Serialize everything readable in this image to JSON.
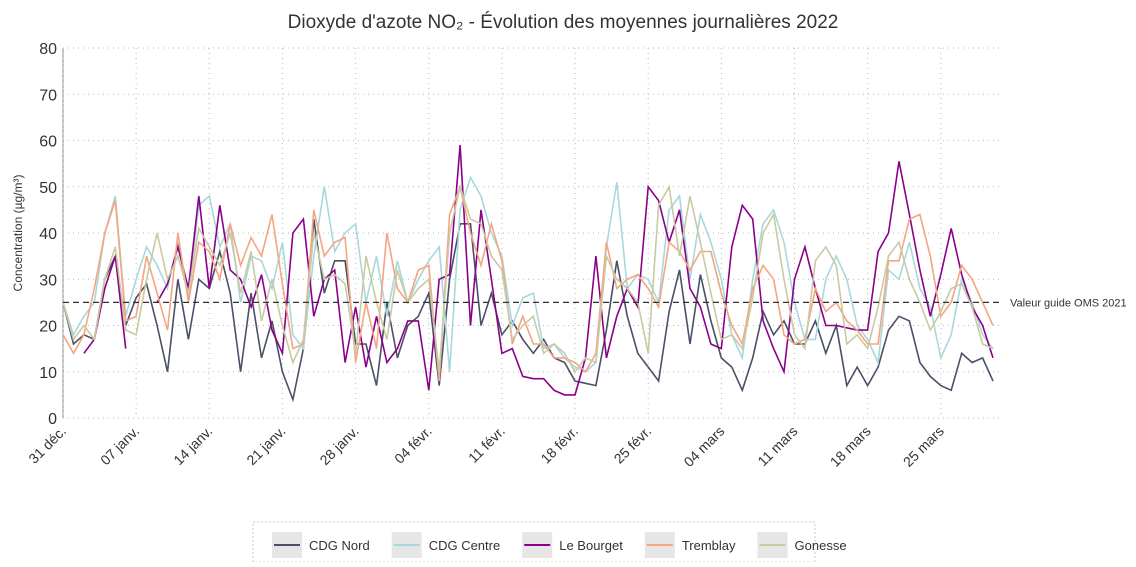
{
  "chart_data": {
    "type": "line",
    "title": "Dioxyde d'azote NO₂ - Évolution des moyennes journalières 2022",
    "y_label": "Concentration (µg/m³)",
    "categories": [
      "31 déc.",
      null,
      null,
      null,
      null,
      null,
      null,
      "07 janv.",
      null,
      null,
      null,
      null,
      null,
      null,
      "14 janv.",
      null,
      null,
      null,
      null,
      null,
      null,
      "21 janv.",
      null,
      null,
      null,
      null,
      null,
      null,
      "28 janv.",
      null,
      null,
      null,
      null,
      null,
      null,
      "04 févr.",
      null,
      null,
      null,
      null,
      null,
      null,
      "11 févr.",
      null,
      null,
      null,
      null,
      null,
      null,
      "18 févr.",
      null,
      null,
      null,
      null,
      null,
      null,
      "25 févr.",
      null,
      null,
      null,
      null,
      null,
      null,
      "04 mars",
      null,
      null,
      null,
      null,
      null,
      null,
      "11 mars",
      null,
      null,
      null,
      null,
      null,
      null,
      "18 mars",
      null,
      null,
      null,
      null,
      null,
      null,
      "25 mars",
      null,
      null,
      null,
      null,
      null
    ],
    "series": [
      {
        "name": "CDG Nord",
        "color": "#4a5068",
        "values": [
          25,
          16,
          18,
          17,
          30,
          35,
          20,
          26,
          29,
          20,
          10,
          30,
          17,
          30,
          28,
          36,
          27,
          10,
          27,
          13,
          21,
          10,
          4,
          15,
          43,
          27,
          34,
          34,
          16,
          16,
          7,
          25,
          13,
          20,
          22,
          27,
          7,
          30,
          42,
          42,
          20,
          27,
          18,
          21,
          17,
          14,
          17,
          13,
          12,
          8,
          7.5,
          7,
          19,
          34,
          22,
          14,
          11,
          8,
          23,
          32,
          16,
          31,
          21,
          13,
          11,
          6,
          13,
          23,
          18,
          21,
          16,
          16,
          21,
          14,
          20,
          7,
          11,
          7,
          11,
          19,
          22,
          21,
          12,
          9,
          7,
          6,
          14,
          12,
          13,
          8
        ]
      },
      {
        "name": "CDG Centre",
        "color": "#a8d8dc",
        "values": [
          25,
          18,
          22,
          25,
          40,
          48,
          22,
          30,
          37,
          33,
          28,
          38,
          26,
          46,
          48,
          37,
          42,
          25,
          35,
          34,
          28,
          38,
          18,
          15,
          35,
          50,
          36,
          40,
          42,
          25,
          35,
          22,
          34,
          25,
          30,
          34,
          37,
          10,
          45,
          52,
          48,
          40,
          35,
          20,
          26,
          27,
          15,
          16,
          13,
          11,
          10,
          12,
          37,
          51,
          28,
          31,
          30,
          25,
          45,
          48,
          30,
          44,
          38,
          30,
          18,
          13,
          30,
          42,
          45,
          38,
          25,
          17,
          17,
          30,
          35,
          30,
          20,
          17,
          12,
          32,
          30,
          38,
          28,
          24,
          13,
          18,
          30,
          25,
          18,
          15
        ]
      },
      {
        "name": "Le Bourget",
        "color": "#8b008b",
        "values": [
          null,
          null,
          14,
          17,
          28,
          35,
          15,
          null,
          null,
          25,
          29,
          37,
          28,
          48,
          28,
          46,
          32,
          30,
          24,
          31,
          19,
          14,
          40,
          43,
          22,
          30,
          32,
          12,
          24,
          11,
          22,
          12,
          15,
          21,
          21,
          6,
          30,
          31,
          59,
          20,
          45,
          30,
          14,
          15,
          9,
          8.5,
          8.5,
          6,
          5,
          5,
          13,
          35,
          13,
          22,
          28,
          24,
          50,
          47,
          38,
          45,
          28,
          24,
          16,
          15,
          37,
          46,
          43,
          21,
          15,
          10,
          30,
          37,
          28,
          20,
          20,
          19.5,
          19,
          19,
          36,
          40,
          55.5,
          44,
          32,
          22,
          31,
          41,
          31,
          24,
          20,
          13
        ]
      },
      {
        "name": "Tremblay",
        "color": "#f4a582",
        "values": [
          18,
          14,
          18,
          28,
          40,
          47,
          21,
          22,
          35,
          27,
          19,
          40,
          25,
          38,
          36,
          30,
          42,
          33,
          39,
          35,
          44,
          29,
          15,
          16,
          45,
          35,
          38,
          39,
          12,
          25,
          15,
          40,
          28,
          25,
          32,
          33,
          8,
          44,
          50,
          40,
          33,
          42,
          34,
          16,
          22,
          16,
          16,
          13,
          13,
          12,
          10,
          14,
          38,
          28,
          30,
          31,
          28,
          24,
          38,
          36,
          32,
          36,
          36,
          27,
          20,
          16,
          28,
          33,
          30,
          18,
          16,
          17,
          28,
          23,
          25,
          21,
          19,
          16,
          16,
          34,
          34,
          43,
          44,
          35,
          22,
          25,
          33,
          30,
          25,
          20
        ]
      },
      {
        "name": "Gonesse",
        "color": "#c9c9a3",
        "values": [
          25,
          17,
          20,
          17,
          30,
          37,
          19,
          18,
          30,
          40,
          30,
          35,
          27,
          41,
          37,
          33,
          40,
          27,
          36,
          21,
          30,
          20,
          12,
          17,
          40,
          30,
          31,
          29,
          14,
          35,
          25,
          17,
          32,
          25,
          28,
          30,
          10,
          40,
          50,
          43,
          42,
          35,
          32,
          17,
          20,
          22,
          14,
          16,
          14,
          10,
          13,
          12,
          35,
          30,
          28,
          25,
          14,
          46,
          50,
          35,
          48,
          38,
          27,
          17,
          18,
          15,
          26,
          40,
          44,
          30,
          18,
          15,
          34,
          37,
          33,
          16,
          18,
          15,
          24,
          35,
          38,
          30,
          25,
          19,
          23,
          28,
          29,
          24,
          16,
          15
        ]
      }
    ],
    "reference_line": {
      "value": 25,
      "label": "Valeur guide OMS 2021"
    },
    "ylim": [
      0,
      80
    ],
    "yticks": [
      0,
      10,
      20,
      30,
      40,
      50,
      60,
      70,
      80
    ],
    "grid": true,
    "legend": "bottom"
  }
}
